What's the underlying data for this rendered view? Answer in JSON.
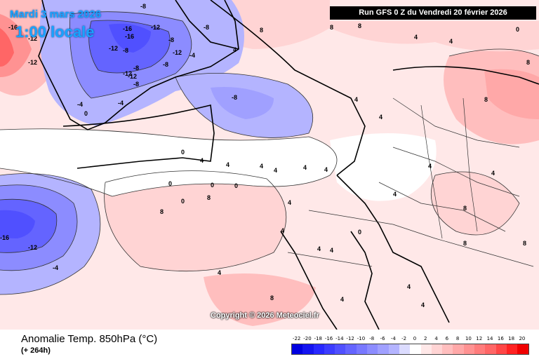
{
  "header": {
    "date": "Mardi 3 mars 2026",
    "time": "1:00 locale",
    "run": "Run GFS 0 Z du Vendredi 20 février 2026"
  },
  "copyright": "Copyright © 2026 Meteociel.fr",
  "footer": {
    "title": "Anomalie Temp. 850hPa (°C)",
    "subtitle": "(+ 264h)"
  },
  "legend": {
    "labels": [
      "-22",
      "-20",
      "-18",
      "-16",
      "-14",
      "-12",
      "-10",
      "-8",
      "-6",
      "-4",
      "-2",
      "0",
      "2",
      "4",
      "6",
      "8",
      "10",
      "12",
      "14",
      "16",
      "18",
      "20"
    ],
    "colors": [
      "#0000e0",
      "#1414f0",
      "#2828ff",
      "#3c3cff",
      "#5050ff",
      "#6464ff",
      "#7878ff",
      "#8c8cff",
      "#a0a0ff",
      "#b4b4ff",
      "#dcdcff",
      "#ffffff",
      "#ffe8e8",
      "#ffd4d4",
      "#ffbebe",
      "#ffa8a8",
      "#ff9292",
      "#ff7c7c",
      "#ff6666",
      "#ff4646",
      "#ff2222",
      "#f00000"
    ]
  },
  "contour_labels": [
    {
      "text": "-8"
    },
    {
      "text": "-16"
    },
    {
      "text": "-12"
    },
    {
      "text": "-16"
    },
    {
      "text": "-12"
    },
    {
      "text": "-12"
    },
    {
      "text": "-8"
    },
    {
      "text": "-12"
    },
    {
      "text": "-8"
    },
    {
      "text": "-8"
    },
    {
      "text": "-12"
    },
    {
      "text": "-8"
    },
    {
      "text": "-4"
    },
    {
      "text": "0"
    },
    {
      "text": "-8"
    },
    {
      "text": "-8"
    },
    {
      "text": "-4"
    },
    {
      "text": "8"
    },
    {
      "text": "4"
    },
    {
      "text": "8"
    },
    {
      "text": "8"
    },
    {
      "text": "4"
    },
    {
      "text": "4"
    },
    {
      "text": "0"
    },
    {
      "text": "8"
    },
    {
      "text": "4"
    },
    {
      "text": "8"
    },
    {
      "text": "4"
    },
    {
      "text": "4"
    },
    {
      "text": "0"
    },
    {
      "text": "4"
    },
    {
      "text": "4"
    },
    {
      "text": "4"
    },
    {
      "text": "4"
    },
    {
      "text": "0"
    },
    {
      "text": "0"
    },
    {
      "text": "0"
    },
    {
      "text": "8"
    },
    {
      "text": "8"
    },
    {
      "text": "4"
    },
    {
      "text": "8"
    },
    {
      "text": "-16"
    },
    {
      "text": "-12"
    },
    {
      "text": "-4"
    },
    {
      "text": "4"
    },
    {
      "text": "4"
    },
    {
      "text": "4"
    },
    {
      "text": "4"
    },
    {
      "text": "4"
    },
    {
      "text": "8"
    },
    {
      "text": "4"
    },
    {
      "text": "0"
    },
    {
      "text": "4"
    },
    {
      "text": "-12"
    },
    {
      "text": "-12"
    },
    {
      "text": "-16"
    },
    {
      "text": "0"
    },
    {
      "text": "-4"
    },
    {
      "text": "-8"
    },
    {
      "text": "4"
    },
    {
      "text": "4"
    },
    {
      "text": "4"
    },
    {
      "text": "8"
    },
    {
      "text": "8"
    },
    {
      "text": "4"
    }
  ]
}
